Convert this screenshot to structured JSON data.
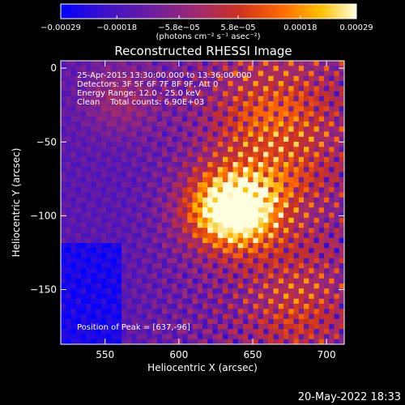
{
  "chart_data": {
    "type": "heatmap",
    "title": "Reconstructed RHESSI Image",
    "xlabel": "Heliocentric X (arcsec)",
    "ylabel": "Heliocentric Y (arcsec)",
    "xlim": [
      520,
      712
    ],
    "ylim": [
      -187,
      5
    ],
    "x_ticks": [
      "550",
      "600",
      "650",
      "700"
    ],
    "x_tick_values": [
      550,
      600,
      650,
      700
    ],
    "y_ticks": [
      "0",
      "−50",
      "−100",
      "−150"
    ],
    "y_tick_values": [
      0,
      -50,
      -100,
      -150
    ],
    "colorbar": {
      "tick_labels": [
        "−0.00029",
        "−0.00018",
        "−5.8e−05",
        "5.8e−05",
        "0.00018",
        "0.00029"
      ],
      "tick_values": [
        -0.00029,
        -0.00018,
        -5.8e-05,
        5.8e-05,
        0.00018,
        0.00029
      ],
      "range": [
        -0.00029,
        0.00029
      ],
      "units_label": "(photons cm⁻² s⁻¹ asec⁻²)"
    },
    "annotations": [
      "25-Apr-2015 13:30:00.000 to 13:36:00.000",
      "Detectors: 3F 5F 6F 7F 8F 9F, Att 0",
      "Energy Range: 12.0 - 25.0 keV",
      "Clean    Total counts: 6.90E+03"
    ],
    "peak": {
      "label": "Position of Peak = [637,-96]",
      "x": 637,
      "y": -96
    },
    "grid": false
  },
  "footer": {
    "timestamp": "20-May-2022 18:33"
  },
  "colors": {
    "background": "#000000",
    "text": "#ffffff",
    "colormap": [
      "#0000ff",
      "#3a10cc",
      "#6a1da0",
      "#a02a70",
      "#cc3020",
      "#ff6a00",
      "#ffc000",
      "#ffffe0"
    ]
  }
}
